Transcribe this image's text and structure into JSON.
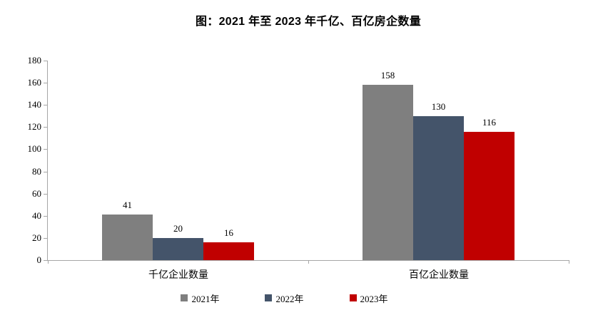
{
  "chart_data": {
    "type": "bar",
    "title": "图：2021 年至 2023 年千亿、百亿房企数量",
    "categories": [
      "千亿企业数量",
      "百亿企业数量"
    ],
    "series": [
      {
        "name": "2021年",
        "color": "#7F7F7F",
        "values": [
          41,
          158
        ]
      },
      {
        "name": "2022年",
        "color": "#44546A",
        "values": [
          20,
          130
        ]
      },
      {
        "name": "2023年",
        "color": "#C00000",
        "values": [
          16,
          116
        ]
      }
    ],
    "ylim": [
      0,
      180
    ],
    "yticks": [
      0,
      20,
      40,
      60,
      80,
      100,
      120,
      140,
      160,
      180
    ],
    "grid": false,
    "legend_position": "bottom",
    "value_labels_shown": true,
    "axis_color": "#A6A6A6",
    "text_color": "#000000",
    "background_color": "#FFFFFF"
  }
}
